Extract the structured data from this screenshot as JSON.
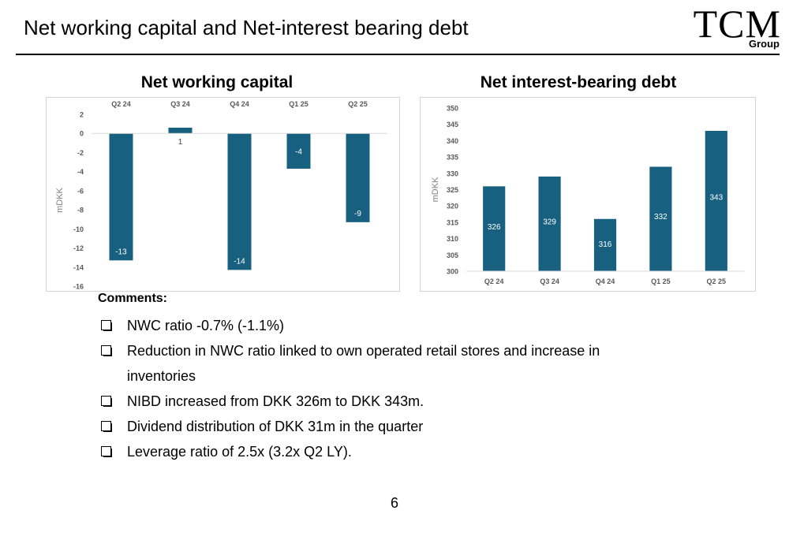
{
  "slide": {
    "title": "Net working capital and Net-interest bearing debt",
    "logo_main": "TCM",
    "logo_sub": "Group",
    "page_number": "6"
  },
  "colors": {
    "bar": "#17607f",
    "grid": "#d9d9d9",
    "axis_text": "#595959"
  },
  "comments": {
    "title": "Comments:",
    "items": [
      "NWC ratio -0.7% (-1.1%)",
      "Reduction in NWC ratio linked to own operated retail stores and increase in inventories",
      "NIBD increased from DKK 326m to DKK 343m.",
      "Dividend distribution of DKK 31m in the quarter",
      "Leverage ratio of 2.5x (3.2x Q2 LY)."
    ]
  },
  "chart_data": [
    {
      "type": "bar",
      "title": "Net working capital",
      "ylabel": "mDKK",
      "xlabel": "",
      "categories": [
        "Q2 24",
        "Q3 24",
        "Q4 24",
        "Q1 25",
        "Q2 25"
      ],
      "values": [
        -13.3,
        0.6,
        -14.3,
        -3.7,
        -9.3
      ],
      "data_labels": [
        "-13",
        "1",
        "-14",
        "-4",
        "-9"
      ],
      "ylim": [
        -16,
        2
      ],
      "yticks": [
        "2",
        "0",
        "-2",
        "-4",
        "-6",
        "-8",
        "-10",
        "-12",
        "-14",
        "-16"
      ],
      "category_axis": "top",
      "grid": false
    },
    {
      "type": "bar",
      "title": "Net interest-bearing debt",
      "ylabel": "mDKK",
      "xlabel": "",
      "categories": [
        "Q2 24",
        "Q3 24",
        "Q4 24",
        "Q1 25",
        "Q2 25"
      ],
      "values": [
        326,
        329,
        316,
        332,
        343
      ],
      "data_labels": [
        "326",
        "329",
        "316",
        "332",
        "343"
      ],
      "ylim": [
        300,
        350
      ],
      "yticks": [
        "350",
        "345",
        "340",
        "335",
        "330",
        "325",
        "320",
        "315",
        "310",
        "305",
        "300"
      ],
      "category_axis": "bottom",
      "grid": false
    }
  ]
}
